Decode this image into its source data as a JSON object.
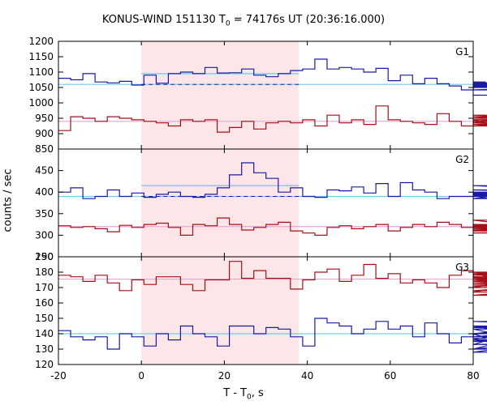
{
  "title": {
    "prefix": "KONUS-WIND 151130 T",
    "sub": "0",
    "suffix": " = 74176s UT (20:36:16.000)"
  },
  "axes": {
    "ylabel": "counts / sec",
    "xlabel_prefix": "T - T",
    "xlabel_sub": "0",
    "xlabel_suffix": ", s"
  },
  "chart_data": {
    "type": "line",
    "x_range": [
      -20,
      80
    ],
    "x_ticks": [
      -20,
      0,
      20,
      40,
      60,
      80
    ],
    "bin_width_s": 2.944,
    "highlight_interval": [
      0,
      38
    ],
    "colors": {
      "hard_band": "#1a1aa6",
      "soft_band": "#a60f1a",
      "fit_cyan": "#6ad2ea",
      "fit_pink": "#e6a6d6",
      "shade": "#fde6e8"
    },
    "panels": [
      {
        "name": "G1",
        "ylim": [
          850,
          1200
        ],
        "y_ticks": [
          850,
          900,
          950,
          1000,
          1050,
          1100,
          1150,
          1200
        ],
        "upper_series": {
          "values": [
            1080,
            1075,
            1095,
            1068,
            1065,
            1070,
            1058,
            1090,
            1064,
            1095,
            1100,
            1095,
            1115,
            1097,
            1098,
            1110,
            1090,
            1085,
            1095,
            1105,
            1110,
            1142,
            1110,
            1115,
            1110,
            1100,
            1112,
            1072,
            1090,
            1062,
            1080,
            1062,
            1055,
            1042,
            1060,
            1068,
            1052,
            1065,
            1060,
            1052,
            1065,
            1060,
            1050,
            1061,
            1042,
            1058,
            1062,
            1060,
            1063,
            1058,
            1062,
            1060,
            1055,
            1057,
            1050,
            1060,
            1058,
            1063,
            1025
          ],
          "background": 1060,
          "interval_level": 1095
        },
        "lower_series": {
          "values": [
            910,
            955,
            950,
            940,
            955,
            950,
            945,
            940,
            935,
            925,
            945,
            940,
            945,
            905,
            920,
            940,
            915,
            935,
            940,
            935,
            945,
            925,
            960,
            935,
            945,
            930,
            990,
            945,
            940,
            935,
            930,
            965,
            940,
            925,
            945,
            935,
            950,
            955,
            945,
            945,
            945,
            940,
            935,
            925,
            955,
            940,
            960,
            930,
            945,
            935,
            945,
            955,
            945,
            950,
            945,
            935,
            950,
            945,
            950
          ],
          "background": 940
        }
      },
      {
        "name": "G2",
        "ylim": [
          250,
          500
        ],
        "y_ticks": [
          250,
          300,
          350,
          400,
          450
        ],
        "upper_series": {
          "values": [
            400,
            410,
            385,
            390,
            405,
            390,
            398,
            388,
            395,
            400,
            390,
            388,
            395,
            410,
            440,
            468,
            445,
            432,
            400,
            410,
            390,
            388,
            405,
            403,
            412,
            398,
            420,
            390,
            422,
            405,
            400,
            385,
            390,
            390,
            398,
            396,
            385,
            398,
            395,
            400,
            390,
            395,
            405,
            400,
            400,
            398,
            390,
            400,
            395,
            390,
            400,
            393,
            385,
            393,
            392,
            385,
            415,
            390,
            390
          ],
          "background": 390,
          "interval_level": 415
        },
        "lower_series": {
          "values": [
            322,
            318,
            320,
            315,
            308,
            323,
            318,
            325,
            328,
            318,
            300,
            325,
            322,
            340,
            325,
            312,
            318,
            325,
            330,
            310,
            305,
            300,
            318,
            322,
            315,
            320,
            325,
            310,
            318,
            325,
            320,
            330,
            325,
            318,
            325,
            320,
            312,
            315,
            320,
            335,
            315,
            320,
            318,
            325,
            315,
            318,
            310,
            322,
            320,
            305,
            318,
            325,
            310,
            320,
            318,
            320,
            305,
            315,
            315
          ],
          "background": 320
        }
      },
      {
        "name": "G3",
        "ylim": [
          120,
          190
        ],
        "y_ticks": [
          120,
          130,
          140,
          150,
          160,
          170,
          180,
          190
        ],
        "upper_series": {
          "values": [
            142,
            138,
            136,
            138,
            130,
            140,
            138,
            132,
            140,
            136,
            145,
            140,
            138,
            132,
            145,
            145,
            140,
            144,
            143,
            138,
            132,
            150,
            147,
            145,
            140,
            143,
            148,
            143,
            145,
            138,
            147,
            140,
            134,
            138,
            140,
            137,
            133,
            140,
            130,
            140,
            145,
            135,
            143,
            128,
            138,
            145,
            130,
            140,
            145,
            133,
            136,
            138,
            148,
            143,
            145,
            145,
            140,
            144,
            140
          ],
          "background": 140
        },
        "lower_series": {
          "values": [
            178,
            177,
            174,
            178,
            173,
            168,
            175,
            172,
            177,
            177,
            172,
            168,
            175,
            175,
            187,
            176,
            181,
            176,
            176,
            169,
            175,
            180,
            182,
            174,
            178,
            185,
            176,
            179,
            173,
            175,
            173,
            170,
            178,
            181,
            176,
            177,
            170,
            174,
            176,
            176,
            174,
            179,
            167,
            180,
            172,
            176,
            165,
            173,
            178,
            180,
            176,
            172,
            177,
            171,
            177,
            175,
            179,
            168,
            180
          ],
          "background": 175.5
        }
      }
    ]
  }
}
